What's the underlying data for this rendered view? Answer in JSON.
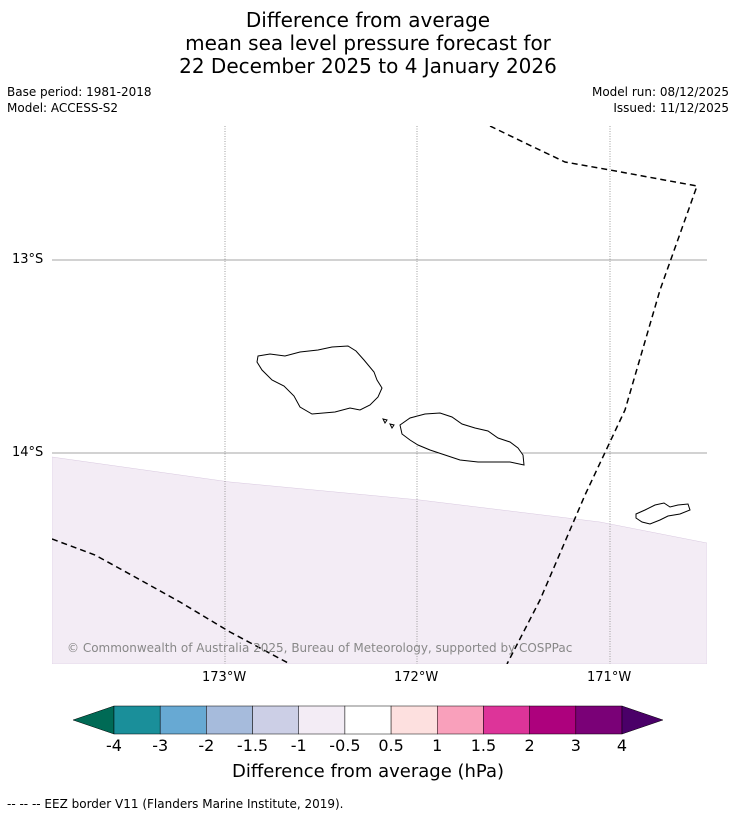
{
  "title": {
    "line1": "Difference from average",
    "line2": "mean sea level pressure forecast for",
    "line3": "22 December 2025 to 4 January 2026"
  },
  "meta": {
    "base_period": "Base period: 1981-2018",
    "model": "Model: ACCESS-S2",
    "model_run": "Model run: 08/12/2025",
    "issued": "Issued: 11/12/2025"
  },
  "map": {
    "lat_labels": [
      "13°S",
      "14°S"
    ],
    "lon_labels": [
      "173°W",
      "172°W",
      "171°W"
    ],
    "copyright": "© Commonwealth of Australia 2025, Bureau of Meteorology, supported by COSPPac",
    "anomaly_fill_color": "#f3ecf5",
    "coast_color": "#000000"
  },
  "colorbar": {
    "title": "Difference from average (hPa)",
    "tick_labels": [
      "-4",
      "-3",
      "-2",
      "-1.5",
      "-1",
      "-0.5",
      "0.5",
      "1",
      "1.5",
      "2",
      "3",
      "4"
    ],
    "under_color": "#006a55",
    "over_color": "#4a0068",
    "colors": [
      "#1a8f9a",
      "#67a9d3",
      "#a6bbdc",
      "#cccfe6",
      "#f3ecf5",
      "#ffffff",
      "#fde0df",
      "#f9a0bb",
      "#dd3499",
      "#ad017d",
      "#7a0177"
    ]
  },
  "footnote": "--  --  -- EEZ border V11 (Flanders Marine Institute, 2019)."
}
